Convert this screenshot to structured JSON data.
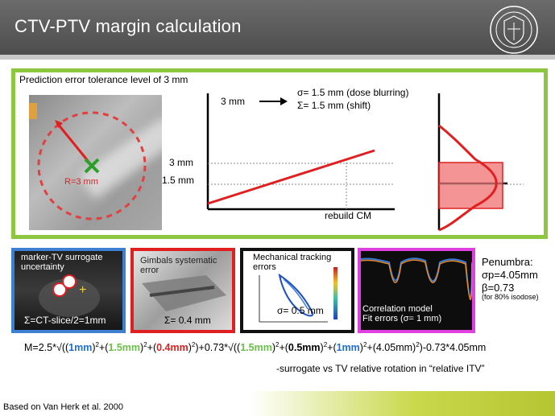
{
  "title": "CTV-PTV margin calculation",
  "main": {
    "label": "Prediction error tolerance level of 3 mm",
    "radius_label": "R=3 mm",
    "graph": {
      "top_label": "3 mm",
      "sigma_text": "σ= 1.5 mm (dose blurring)",
      "Sigma_text": "Σ= 1.5 mm (shift)",
      "y_tick_3": "3 mm",
      "y_tick_15": "1.5 mm",
      "x_label": "rebuild CM"
    }
  },
  "panels": {
    "p1": {
      "title": "marker-TV surrogate uncertainty",
      "value": "Σ=CT-slice/2=1mm"
    },
    "p2": {
      "title": "Gimbals systematic error",
      "value": "Σ= 0.4 mm"
    },
    "p3": {
      "title": "Mechanical tracking errors",
      "value": "σ= 0.5 mm"
    },
    "p4": {
      "title1": "Correlation model",
      "title2": "Fit errors (σ= 1 mm)"
    }
  },
  "penumbra": {
    "title": "Penumbra:",
    "sigma": "σp=4.05mm",
    "beta": "β=0.73",
    "note": "(for 80% isodose)"
  },
  "formula": {
    "p1": "M=2.5*√((",
    "v1": "1mm",
    "p2": ")",
    "s": "2",
    "p3": "+(",
    "v2": "1.5mm",
    "p4": ")",
    "p5": "+(",
    "v3": "0.4mm",
    "p6": ")",
    "p7": ")+0.73*√((",
    "v4": "1.5mm",
    "p8": ")",
    "p9": "+(",
    "v5": "0.5mm",
    "p10": ")",
    "p11": "+(",
    "v6": "1mm",
    "p12": ")",
    "p13": "+(4.05mm)",
    "p14": ")-0.73*4.05mm"
  },
  "note": "-surrogate vs TV relative rotation in “relative ITV”",
  "footer": "Based on Van Herk et al. 2000",
  "colors": {
    "green_frame": "#8dc63f",
    "red": "#e02020",
    "blue": "#3d7fd1",
    "magenta": "#e040e0"
  }
}
